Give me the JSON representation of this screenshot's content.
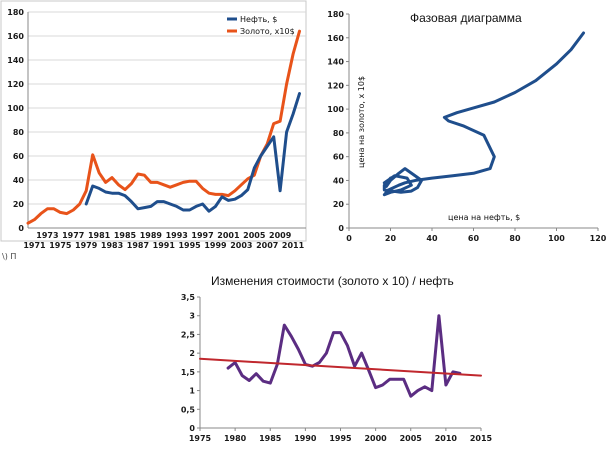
{
  "chart_data": [
    {
      "type": "line",
      "title": "",
      "xlabel": "",
      "ylabel": "",
      "xlim": [
        1970,
        2013
      ],
      "ylim": [
        0,
        180
      ],
      "yticks": [
        0,
        20,
        40,
        60,
        80,
        100,
        120,
        140,
        160,
        180
      ],
      "xticks_bottom": [
        1971,
        1975,
        1979,
        1983,
        1987,
        1991,
        1995,
        1999,
        2003,
        2007,
        2011
      ],
      "xticks_top": [
        1973,
        1977,
        1981,
        1985,
        1989,
        1993,
        1997,
        2001,
        2005,
        2009
      ],
      "grid": "horizontal",
      "legend": "top-right",
      "series": [
        {
          "name": "Нефть, $",
          "color": "#1f4e8c",
          "x": [
            1979,
            1980,
            1981,
            1982,
            1983,
            1984,
            1985,
            1986,
            1987,
            1988,
            1989,
            1990,
            1991,
            1992,
            1993,
            1994,
            1995,
            1996,
            1997,
            1998,
            1999,
            2000,
            2001,
            2002,
            2003,
            2004,
            2005,
            2006,
            2007,
            2008,
            2009,
            2010,
            2011,
            2012
          ],
          "values": [
            20,
            35,
            33,
            30,
            29,
            29,
            27,
            22,
            16,
            17,
            18,
            22,
            22,
            20,
            18,
            15,
            15,
            18,
            20,
            14,
            18,
            26,
            23,
            24,
            27,
            32,
            50,
            60,
            68,
            76,
            31,
            80,
            95,
            112
          ]
        },
        {
          "name": "Золото, x10$",
          "color": "#e8531a",
          "x": [
            1970,
            1971,
            1972,
            1973,
            1974,
            1975,
            1976,
            1977,
            1978,
            1979,
            1980,
            1981,
            1982,
            1983,
            1984,
            1985,
            1986,
            1987,
            1988,
            1989,
            1990,
            1991,
            1992,
            1993,
            1994,
            1995,
            1996,
            1997,
            1998,
            1999,
            2000,
            2001,
            2002,
            2003,
            2004,
            2005,
            2006,
            2007,
            2008,
            2009,
            2010,
            2011,
            2012
          ],
          "values": [
            4,
            7,
            12,
            16,
            16,
            13,
            12,
            15,
            20,
            31,
            61,
            46,
            38,
            42,
            36,
            32,
            37,
            45,
            44,
            38,
            38,
            36,
            34,
            36,
            38,
            39,
            39,
            33,
            29,
            28,
            28,
            27,
            31,
            36,
            41,
            44,
            60,
            70,
            87,
            89,
            120,
            145,
            164
          ]
        }
      ]
    },
    {
      "type": "line",
      "title": "Фазовая диаграмма",
      "xlabel": "цена на нефть, $",
      "ylabel": "цена на золото, х 10$",
      "xlim": [
        0,
        120
      ],
      "ylim": [
        0,
        180
      ],
      "xticks": [
        0,
        20,
        40,
        60,
        80,
        100,
        120
      ],
      "yticks": [
        0,
        20,
        40,
        60,
        80,
        100,
        120,
        140,
        160,
        180
      ],
      "grid": "off",
      "series": [
        {
          "color": "#1f4e8c",
          "x": [
            20,
            17,
            17,
            25,
            30,
            33,
            35,
            31,
            27,
            24,
            20,
            18,
            17,
            22,
            28,
            30,
            25,
            20,
            17,
            19,
            24,
            27,
            32,
            40,
            50,
            60,
            68,
            70,
            65,
            55,
            48,
            46,
            52,
            60,
            70,
            80,
            90,
            100,
            107,
            113
          ],
          "values": [
            42,
            36,
            32,
            30,
            31,
            34,
            40,
            45,
            50,
            46,
            40,
            35,
            38,
            44,
            42,
            36,
            32,
            30,
            28,
            32,
            36,
            38,
            40,
            42,
            44,
            46,
            50,
            60,
            78,
            86,
            90,
            93,
            97,
            101,
            106,
            114,
            124,
            138,
            150,
            164
          ]
        }
      ]
    },
    {
      "type": "line",
      "title": "Изменения стоимости (золото х 10) / нефть",
      "xlabel": "",
      "ylabel": "",
      "xlim": [
        1975,
        2015
      ],
      "ylim": [
        0,
        3.5
      ],
      "xticks": [
        1975,
        1980,
        1985,
        1990,
        1995,
        2000,
        2005,
        2010,
        2015
      ],
      "yticks": [
        "0",
        "0,5",
        "1",
        "1,5",
        "2",
        "2,5",
        "3",
        "3,5"
      ],
      "grid": "off",
      "series": [
        {
          "color": "#5b2d82",
          "x": [
            1979,
            1980,
            1981,
            1982,
            1983,
            1984,
            1985,
            1986,
            1987,
            1988,
            1989,
            1990,
            1991,
            1992,
            1993,
            1994,
            1995,
            1996,
            1997,
            1998,
            1999,
            2000,
            2001,
            2002,
            2003,
            2004,
            2005,
            2006,
            2007,
            2008,
            2009,
            2010,
            2011,
            2012
          ],
          "values": [
            1.6,
            1.75,
            1.4,
            1.27,
            1.45,
            1.25,
            1.2,
            1.7,
            2.75,
            2.45,
            2.1,
            1.7,
            1.65,
            1.75,
            2.0,
            2.55,
            2.55,
            2.2,
            1.65,
            2.0,
            1.55,
            1.08,
            1.15,
            1.3,
            1.3,
            1.3,
            0.85,
            1.0,
            1.1,
            1.0,
            3.0,
            1.15,
            1.5,
            1.46
          ]
        },
        {
          "color": "#c0272d",
          "x": [
            1975,
            2015
          ],
          "values": [
            1.85,
            1.4
          ]
        }
      ]
    }
  ],
  "legend": [
    {
      "label": "Нефть, $",
      "color": "#1f4e8c"
    },
    {
      "label": "Золото, x10$",
      "color": "#e8531a"
    }
  ],
  "stray_text": "\\)  П"
}
